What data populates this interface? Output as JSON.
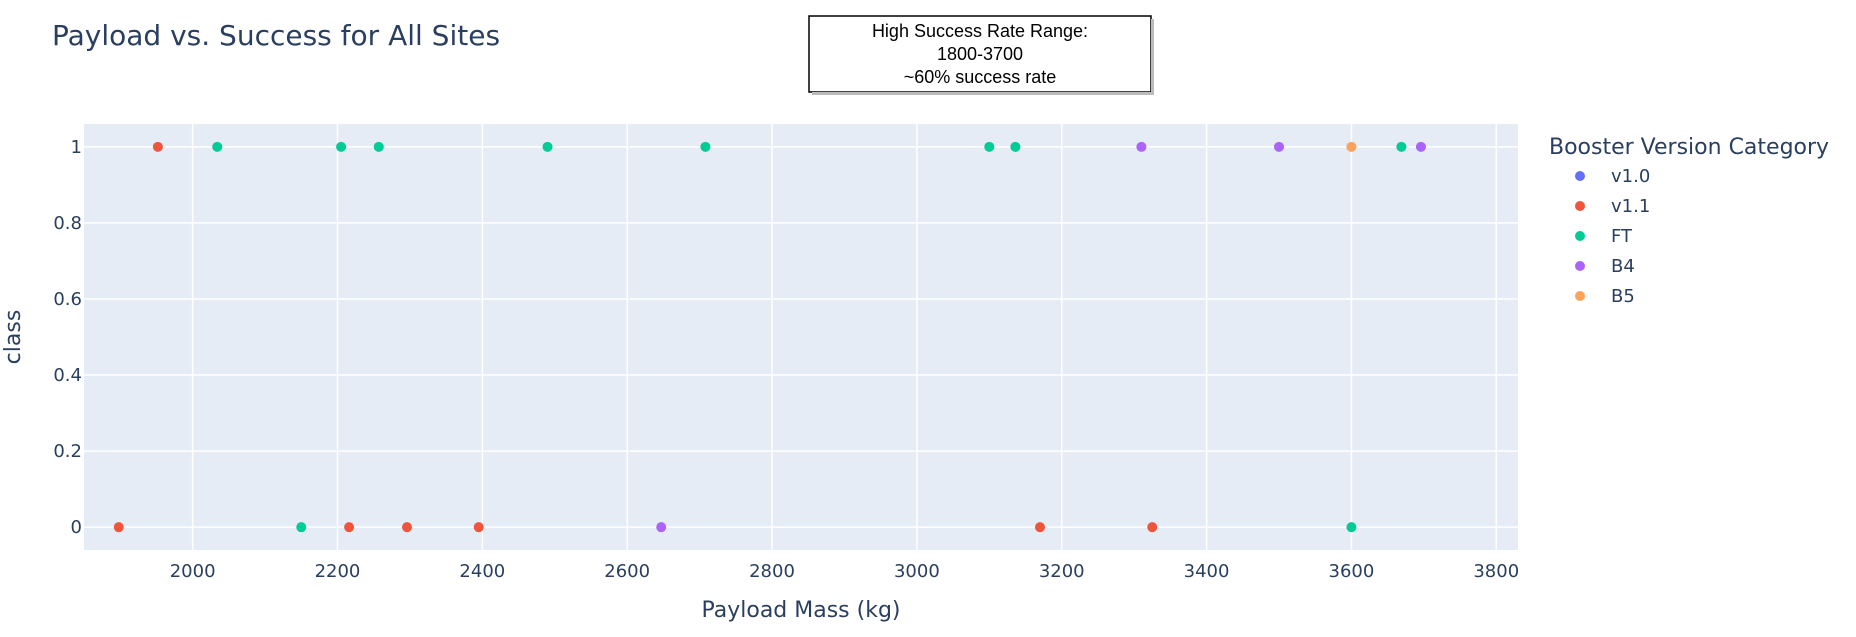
{
  "chart_data": {
    "type": "scatter",
    "title": "Payload vs. Success for All Sites",
    "xlabel": "Payload Mass (kg)",
    "ylabel": "class",
    "xlim": [
      1850,
      3830
    ],
    "ylim": [
      -0.06,
      1.06
    ],
    "x_ticks": [
      2000,
      2200,
      2400,
      2600,
      2800,
      3000,
      3200,
      3400,
      3600,
      3800
    ],
    "y_ticks": [
      0,
      0.2,
      0.4,
      0.6,
      0.8,
      1
    ],
    "y_tick_labels": [
      "0",
      "0.2",
      "0.4",
      "0.6",
      "0.8",
      "1"
    ],
    "grid": true,
    "legend_title": "Booster Version Category",
    "legend_position": "right",
    "series": [
      {
        "name": "v1.0",
        "color": "#636efa",
        "points": []
      },
      {
        "name": "v1.1",
        "color": "#ef553b",
        "points": [
          [
            1952,
            1
          ],
          [
            1898,
            0
          ],
          [
            2216,
            0
          ],
          [
            2296,
            0
          ],
          [
            2395,
            0
          ],
          [
            3170,
            0
          ],
          [
            3325,
            0
          ]
        ]
      },
      {
        "name": "FT",
        "color": "#00cc96",
        "points": [
          [
            2034,
            1
          ],
          [
            2205,
            1
          ],
          [
            2257,
            1
          ],
          [
            2490,
            1
          ],
          [
            2708,
            1
          ],
          [
            3100,
            1
          ],
          [
            3136,
            1
          ],
          [
            3669,
            1
          ],
          [
            2150,
            0
          ],
          [
            3600,
            0
          ]
        ]
      },
      {
        "name": "B4",
        "color": "#ab63fa",
        "points": [
          [
            3310,
            1
          ],
          [
            3500,
            1
          ],
          [
            3696,
            1
          ],
          [
            2647,
            0
          ]
        ]
      },
      {
        "name": "B5",
        "color": "#ffa15a",
        "points": [
          [
            3600,
            1
          ]
        ]
      }
    ],
    "annotation": {
      "lines": [
        "High Success Rate Range:",
        "1800-3700",
        "~60% success rate"
      ]
    }
  }
}
